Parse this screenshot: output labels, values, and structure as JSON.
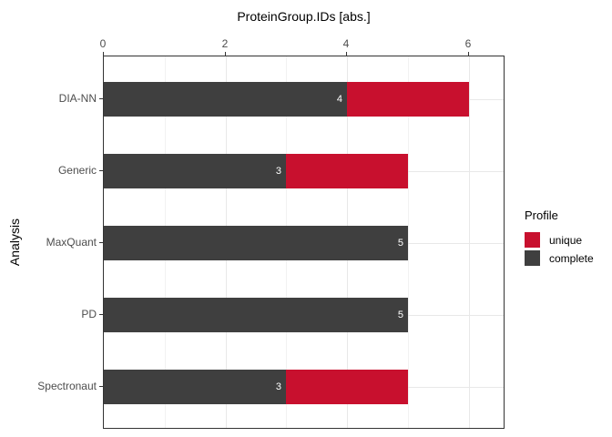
{
  "chart_data": {
    "type": "bar",
    "orientation": "horizontal",
    "stacked": true,
    "title": "ProteinGroup.IDs [abs.]",
    "xlabel": "ProteinGroup.IDs [abs.]",
    "ylabel": "Analysis",
    "categories": [
      "DIA-NN",
      "Generic",
      "MaxQuant",
      "PD",
      "Spectronaut"
    ],
    "series": [
      {
        "name": "complete",
        "color": "#3F3F3F",
        "values": [
          4,
          3,
          5,
          5,
          3
        ]
      },
      {
        "name": "unique",
        "color": "#C8102E",
        "values": [
          2,
          2,
          0,
          0,
          2
        ]
      }
    ],
    "totals": [
      6,
      5,
      5,
      5,
      5
    ],
    "bar_labels": {
      "text": [
        "4",
        "3",
        "5",
        "5",
        "3"
      ],
      "color": "#FFFFFF",
      "position": "end-of-complete-segment"
    },
    "x_axis": {
      "position": "top",
      "ticks": [
        "0",
        "2",
        "4",
        "6"
      ],
      "tick_values": [
        0,
        2,
        4,
        6
      ],
      "minor_tick_values": [
        1,
        3,
        5
      ],
      "range": [
        0,
        6.6
      ]
    },
    "grid": {
      "show": true,
      "major_color": "#E8E8E8",
      "minor_color": "#F2F2F2"
    },
    "legend": {
      "title": "Profile",
      "position": "right",
      "entries": [
        {
          "label": "unique",
          "color": "#C8102E"
        },
        {
          "label": "complete",
          "color": "#3F3F3F"
        }
      ]
    },
    "style": {
      "panel_border_color": "#333333",
      "tick_color": "#333333",
      "tick_label_color": "#4D4D4D",
      "text_color": "#000000",
      "background": "#FFFFFF"
    }
  }
}
